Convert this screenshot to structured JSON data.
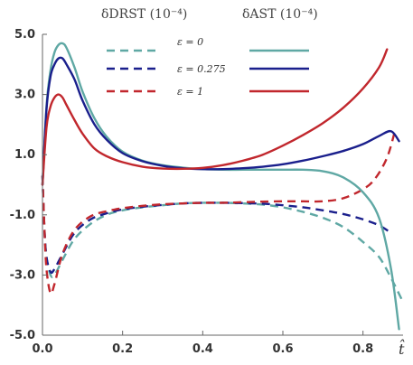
{
  "chart_data": {
    "type": "line",
    "header_left": "δDRST (10⁻⁴)",
    "header_right": "δAST (10⁻⁴)",
    "xlabel": "t̂",
    "xlim": [
      0.0,
      0.9
    ],
    "ylim": [
      -5.0,
      5.0
    ],
    "x_ticks": [
      "0.0",
      "0.2",
      "0.4",
      "0.6",
      "0.8"
    ],
    "x_tick_values": [
      0.0,
      0.2,
      0.4,
      0.6,
      0.8
    ],
    "y_ticks": [
      "5.0",
      "3.0",
      "1.0",
      "-1.0",
      "-3.0",
      "-5.0"
    ],
    "y_tick_values": [
      5.0,
      3.0,
      1.0,
      -1.0,
      -3.0,
      -5.0
    ],
    "legend": [
      {
        "label": "ε = 0",
        "color": "#5fa8a4"
      },
      {
        "label": "ε = 0.275",
        "color": "#1a1f8c"
      },
      {
        "label": "ε = 1",
        "color": "#c1272d"
      }
    ],
    "series": [
      {
        "group": "DRST",
        "eps": "0",
        "color": "#5fa8a4",
        "dashed": true,
        "x": [
          0.0,
          0.005,
          0.01,
          0.02,
          0.03,
          0.05,
          0.08,
          0.12,
          0.16,
          0.2,
          0.25,
          0.3,
          0.35,
          0.4,
          0.45,
          0.5,
          0.55,
          0.6,
          0.65,
          0.7,
          0.75,
          0.8,
          0.84,
          0.87,
          0.9
        ],
        "y": [
          0.3,
          -1.5,
          -2.4,
          -3.0,
          -3.0,
          -2.5,
          -1.8,
          -1.3,
          -1.0,
          -0.85,
          -0.75,
          -0.68,
          -0.62,
          -0.6,
          -0.6,
          -0.62,
          -0.66,
          -0.75,
          -0.9,
          -1.1,
          -1.4,
          -1.9,
          -2.4,
          -3.1,
          -3.9
        ]
      },
      {
        "group": "DRST",
        "eps": "0.275",
        "color": "#1a1f8c",
        "dashed": true,
        "x": [
          0.0,
          0.005,
          0.01,
          0.02,
          0.03,
          0.05,
          0.08,
          0.12,
          0.16,
          0.2,
          0.25,
          0.3,
          0.35,
          0.4,
          0.45,
          0.5,
          0.55,
          0.6,
          0.65,
          0.7,
          0.75,
          0.8,
          0.84,
          0.87
        ],
        "y": [
          0.3,
          -1.5,
          -2.4,
          -2.9,
          -2.8,
          -2.3,
          -1.6,
          -1.15,
          -0.95,
          -0.82,
          -0.73,
          -0.67,
          -0.62,
          -0.6,
          -0.6,
          -0.61,
          -0.63,
          -0.68,
          -0.75,
          -0.85,
          -0.97,
          -1.15,
          -1.35,
          -1.6
        ]
      },
      {
        "group": "DRST",
        "eps": "1",
        "color": "#c1272d",
        "dashed": true,
        "x": [
          0.0,
          0.005,
          0.01,
          0.02,
          0.03,
          0.05,
          0.08,
          0.12,
          0.16,
          0.2,
          0.25,
          0.3,
          0.35,
          0.4,
          0.45,
          0.5,
          0.55,
          0.6,
          0.65,
          0.7,
          0.75,
          0.8,
          0.83,
          0.86,
          0.88
        ],
        "y": [
          0.3,
          -1.5,
          -2.8,
          -3.6,
          -3.3,
          -2.3,
          -1.5,
          -1.05,
          -0.88,
          -0.78,
          -0.7,
          -0.65,
          -0.62,
          -0.6,
          -0.6,
          -0.58,
          -0.56,
          -0.55,
          -0.55,
          -0.55,
          -0.45,
          -0.15,
          0.2,
          0.9,
          1.8
        ]
      },
      {
        "group": "AST",
        "eps": "0",
        "color": "#5fa8a4",
        "dashed": false,
        "x": [
          0.0,
          0.01,
          0.02,
          0.03,
          0.04,
          0.05,
          0.06,
          0.08,
          0.1,
          0.13,
          0.16,
          0.2,
          0.25,
          0.3,
          0.35,
          0.4,
          0.45,
          0.5,
          0.55,
          0.6,
          0.65,
          0.7,
          0.75,
          0.8,
          0.84,
          0.87,
          0.89
        ],
        "y": [
          0.0,
          2.6,
          3.8,
          4.4,
          4.65,
          4.7,
          4.55,
          3.9,
          3.1,
          2.2,
          1.6,
          1.1,
          0.8,
          0.65,
          0.57,
          0.52,
          0.5,
          0.5,
          0.5,
          0.5,
          0.5,
          0.45,
          0.25,
          -0.25,
          -1.1,
          -2.8,
          -4.8
        ]
      },
      {
        "group": "AST",
        "eps": "0.275",
        "color": "#1a1f8c",
        "dashed": false,
        "x": [
          0.0,
          0.01,
          0.02,
          0.03,
          0.04,
          0.05,
          0.06,
          0.08,
          0.1,
          0.13,
          0.16,
          0.2,
          0.25,
          0.3,
          0.35,
          0.4,
          0.45,
          0.5,
          0.55,
          0.6,
          0.65,
          0.7,
          0.75,
          0.8,
          0.84,
          0.87,
          0.89
        ],
        "y": [
          0.0,
          2.5,
          3.6,
          4.0,
          4.2,
          4.2,
          4.0,
          3.5,
          2.8,
          2.0,
          1.5,
          1.05,
          0.78,
          0.63,
          0.55,
          0.52,
          0.52,
          0.55,
          0.6,
          0.68,
          0.8,
          0.95,
          1.12,
          1.35,
          1.62,
          1.78,
          1.45
        ]
      },
      {
        "group": "AST",
        "eps": "1",
        "color": "#c1272d",
        "dashed": false,
        "x": [
          0.0,
          0.01,
          0.02,
          0.03,
          0.04,
          0.05,
          0.06,
          0.08,
          0.1,
          0.13,
          0.16,
          0.2,
          0.25,
          0.3,
          0.35,
          0.4,
          0.45,
          0.5,
          0.55,
          0.6,
          0.65,
          0.7,
          0.75,
          0.8,
          0.84,
          0.86
        ],
        "y": [
          0.0,
          1.9,
          2.6,
          2.9,
          3.0,
          2.9,
          2.65,
          2.15,
          1.7,
          1.2,
          0.95,
          0.75,
          0.6,
          0.54,
          0.53,
          0.56,
          0.65,
          0.8,
          1.0,
          1.3,
          1.65,
          2.05,
          2.55,
          3.2,
          3.9,
          4.5
        ]
      }
    ]
  }
}
